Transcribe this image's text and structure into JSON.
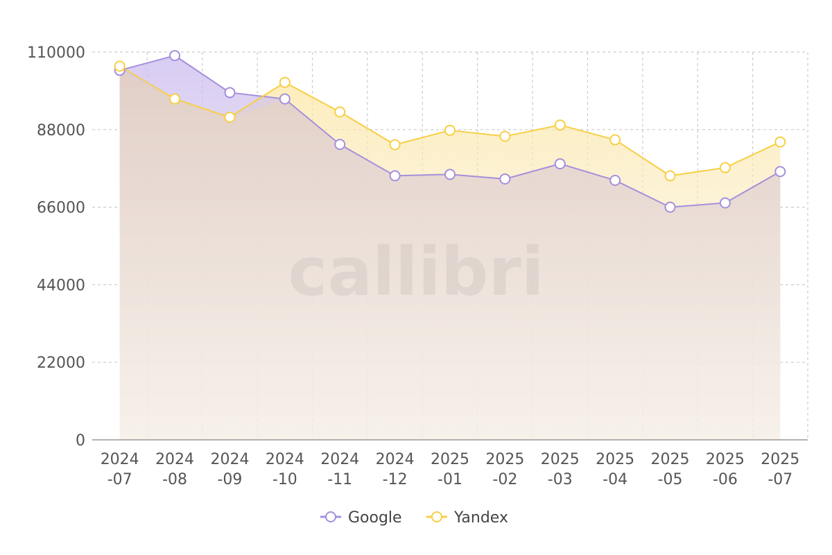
{
  "chart_data": {
    "type": "area",
    "categories": [
      "2024-07",
      "2024-08",
      "2024-09",
      "2024-10",
      "2024-11",
      "2024-12",
      "2025-01",
      "2025-02",
      "2025-03",
      "2025-04",
      "2025-05",
      "2025-06",
      "2025-07"
    ],
    "category_labels": [
      [
        "2024",
        "-07"
      ],
      [
        "2024",
        "-08"
      ],
      [
        "2024",
        "-09"
      ],
      [
        "2024",
        "-10"
      ],
      [
        "2024",
        "-11"
      ],
      [
        "2024",
        "-12"
      ],
      [
        "2025",
        "-01"
      ],
      [
        "2025",
        "-02"
      ],
      [
        "2025",
        "-03"
      ],
      [
        "2025",
        "-04"
      ],
      [
        "2025",
        "-05"
      ],
      [
        "2025",
        "-06"
      ],
      [
        "2025",
        "-07"
      ]
    ],
    "series": [
      {
        "name": "Google",
        "color": "#a58fdb",
        "values": [
          104800,
          109000,
          98500,
          96700,
          83800,
          74900,
          75300,
          74000,
          78300,
          73600,
          66000,
          67200,
          76100
        ]
      },
      {
        "name": "Yandex",
        "color": "#f7cf45",
        "values": [
          106000,
          96700,
          91500,
          101400,
          93000,
          83700,
          87800,
          86100,
          89300,
          85100,
          74900,
          77200,
          84500
        ]
      }
    ],
    "ylim": [
      0,
      110000
    ],
    "yticks": [
      0,
      22000,
      44000,
      66000,
      88000,
      110000
    ],
    "grid": true,
    "legend_position": "bottom-center",
    "watermark": "callibri"
  }
}
